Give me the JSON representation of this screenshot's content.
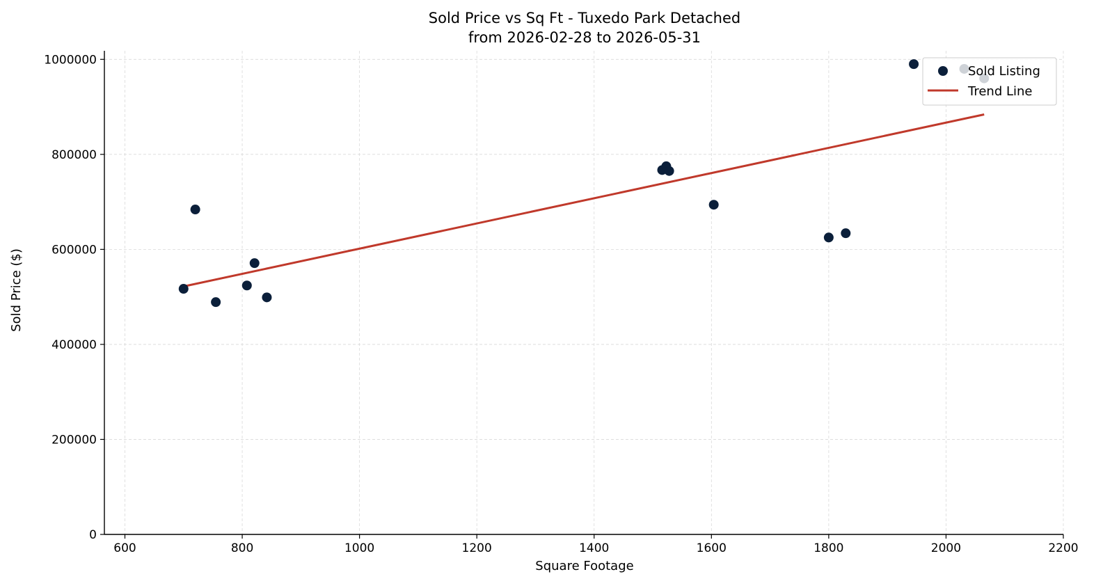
{
  "chart_data": {
    "type": "scatter",
    "title": "Sold Price vs Sq Ft - Tuxedo Park Detached",
    "subtitle": "from 2026-02-28 to 2026-05-31",
    "xlabel": "Square Footage",
    "ylabel": "Sold Price ($)",
    "xlim": [
      565,
      2200
    ],
    "ylim": [
      0,
      1018000
    ],
    "x_ticks": [
      600,
      800,
      1000,
      1200,
      1400,
      1600,
      1800,
      2000,
      2200
    ],
    "y_ticks": [
      0,
      200000,
      400000,
      600000,
      800000,
      1000000
    ],
    "grid": true,
    "legend_position": "top-right",
    "colors": {
      "points": "#0b1f3a",
      "trend": "#c0392b"
    },
    "series": [
      {
        "name": "Sold Listing",
        "type": "scatter",
        "points": [
          {
            "x": 700,
            "y": 517000
          },
          {
            "x": 720,
            "y": 684000
          },
          {
            "x": 755,
            "y": 489000
          },
          {
            "x": 808,
            "y": 524000
          },
          {
            "x": 821,
            "y": 571000
          },
          {
            "x": 842,
            "y": 499000
          },
          {
            "x": 1516,
            "y": 767000
          },
          {
            "x": 1523,
            "y": 775000
          },
          {
            "x": 1528,
            "y": 765000
          },
          {
            "x": 1604,
            "y": 694000
          },
          {
            "x": 1800,
            "y": 625000
          },
          {
            "x": 1829,
            "y": 634000
          },
          {
            "x": 1945,
            "y": 990000
          },
          {
            "x": 2031,
            "y": 980000
          },
          {
            "x": 2065,
            "y": 960000
          }
        ]
      },
      {
        "name": "Trend Line",
        "type": "line",
        "points": [
          {
            "x": 700,
            "y": 522000
          },
          {
            "x": 2065,
            "y": 884000
          }
        ]
      }
    ]
  }
}
